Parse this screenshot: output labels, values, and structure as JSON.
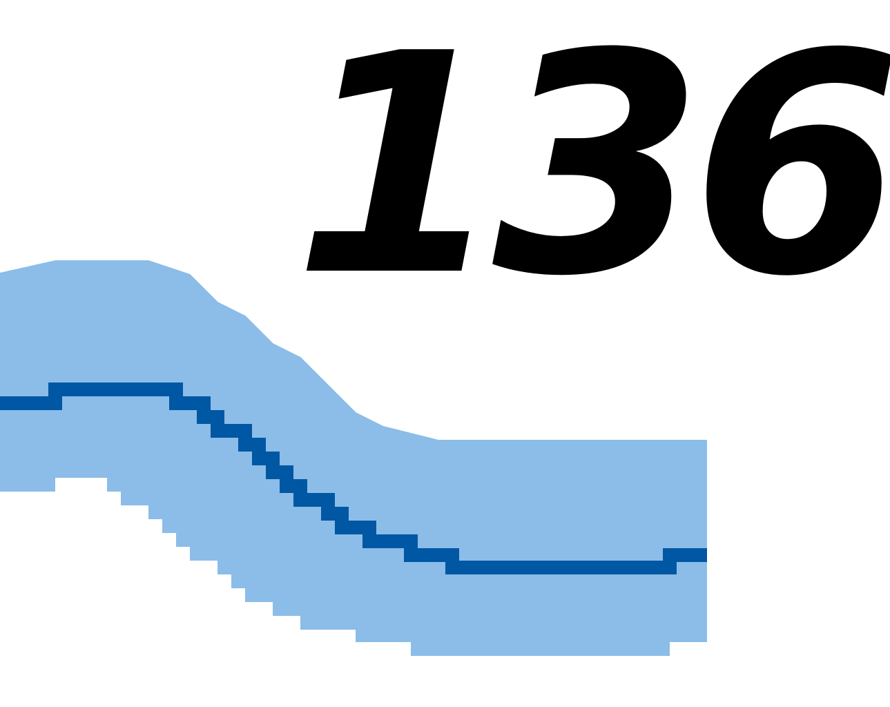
{
  "label": {
    "text": "136"
  },
  "colors": {
    "background": "#ffffff",
    "text": "#000000",
    "road_casing": "#8bbde8",
    "road_centerline": "#0057a3"
  }
}
